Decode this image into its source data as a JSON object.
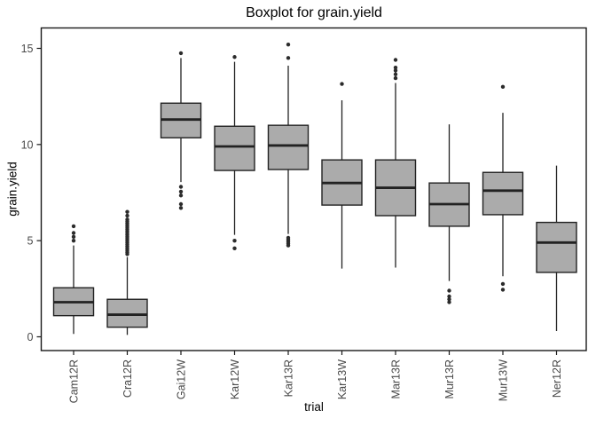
{
  "chart_data": {
    "type": "boxplot",
    "title": "Boxplot for grain.yield",
    "xlabel": "trial",
    "ylabel": "grain.yield",
    "yticks": [
      0,
      5,
      10,
      15
    ],
    "ylim": [
      -0.7,
      16.1
    ],
    "grid": false,
    "legend": "none",
    "categories": [
      "Cam12R",
      "Cra12R",
      "Gai12W",
      "Kar12W",
      "Kar13R",
      "Kar13W",
      "Mar13R",
      "Mur13R",
      "Mur13W",
      "Ner12R"
    ],
    "series": [
      {
        "name": "Cam12R",
        "whislo": 0.15,
        "q1": 1.1,
        "med": 1.8,
        "q3": 2.55,
        "whishi": 4.75,
        "outliers": [
          5.75,
          5.4,
          5.2,
          5.0
        ]
      },
      {
        "name": "Cra12R",
        "whislo": 0.1,
        "q1": 0.5,
        "med": 1.15,
        "q3": 1.95,
        "whishi": 4.15,
        "outliers": [
          6.5,
          6.3,
          6.1,
          6.0,
          5.9,
          5.8,
          5.7,
          5.6,
          5.5,
          5.4,
          5.3,
          5.2,
          5.1,
          5.0,
          4.9,
          4.8,
          4.7,
          4.6,
          4.5,
          4.4,
          4.3
        ]
      },
      {
        "name": "Gai12W",
        "whislo": 8.05,
        "q1": 10.35,
        "med": 11.3,
        "q3": 12.15,
        "whishi": 14.5,
        "outliers": [
          14.75,
          7.8,
          7.55,
          7.35,
          6.9,
          6.7
        ]
      },
      {
        "name": "Kar12W",
        "whislo": 5.3,
        "q1": 8.65,
        "med": 9.9,
        "q3": 10.95,
        "whishi": 14.3,
        "outliers": [
          14.55,
          5.0,
          4.6
        ]
      },
      {
        "name": "Kar13R",
        "whislo": 5.35,
        "q1": 8.7,
        "med": 9.95,
        "q3": 11.0,
        "whishi": 14.1,
        "outliers": [
          15.2,
          14.5,
          5.15,
          5.05,
          4.95,
          4.85,
          4.75
        ]
      },
      {
        "name": "Kar13W",
        "whislo": 3.55,
        "q1": 6.85,
        "med": 8.0,
        "q3": 9.2,
        "whishi": 12.3,
        "outliers": [
          13.15
        ]
      },
      {
        "name": "Mar13R",
        "whislo": 3.6,
        "q1": 6.3,
        "med": 7.75,
        "q3": 9.2,
        "whishi": 13.2,
        "outliers": [
          14.4,
          14.0,
          13.85,
          13.65,
          13.45
        ]
      },
      {
        "name": "Mur13R",
        "whislo": 2.9,
        "q1": 5.75,
        "med": 6.9,
        "q3": 8.0,
        "whishi": 11.05,
        "outliers": [
          2.4,
          2.1,
          1.95,
          1.8
        ]
      },
      {
        "name": "Mur13W",
        "whislo": 3.15,
        "q1": 6.35,
        "med": 7.6,
        "q3": 8.55,
        "whishi": 11.65,
        "outliers": [
          13.0,
          2.75,
          2.45
        ]
      },
      {
        "name": "Ner12R",
        "whislo": 0.3,
        "q1": 3.35,
        "med": 4.9,
        "q3": 5.95,
        "whishi": 8.9,
        "outliers": []
      }
    ],
    "colors": {
      "background": "#ffffff",
      "panel_border": "#1a1a1a",
      "box_fill": "#ababab",
      "box_stroke": "#222222",
      "median": "#222222",
      "whisker": "#222222",
      "outlier": "#2b2b2b",
      "tick_label": "#4a4a4a",
      "axis_title": "#000000"
    }
  }
}
